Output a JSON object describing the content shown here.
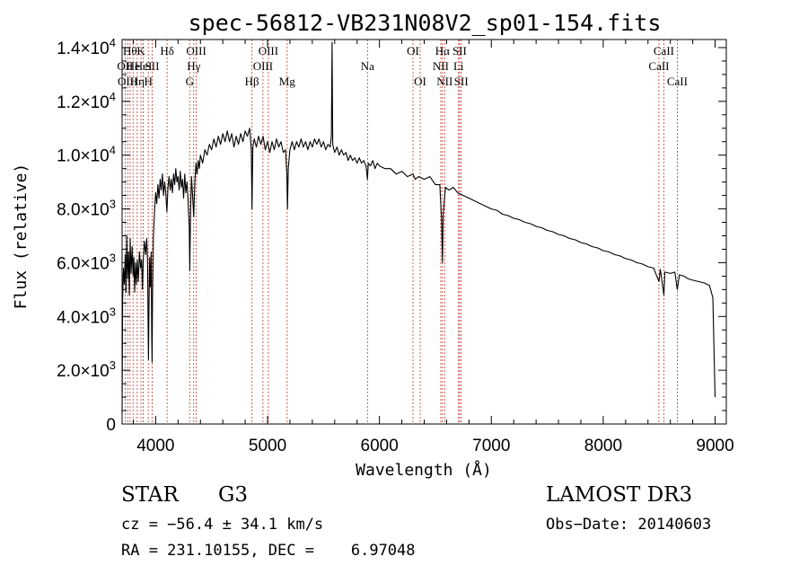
{
  "chart_data": {
    "type": "line",
    "title": "spec-56812-VB231N08V2_sp01-154.fits",
    "xlabel": "Wavelength (Å)",
    "ylabel": "Flux (relative)",
    "xlim": [
      3700,
      9100
    ],
    "ylim": [
      0,
      14300
    ],
    "x_ticks": [
      4000,
      5000,
      6000,
      7000,
      8000,
      9000
    ],
    "x_tick_labels": [
      "4000",
      "5000",
      "6000",
      "7000",
      "8000",
      "9000"
    ],
    "y_ticks": [
      {
        "value": 0,
        "mantissa": "0",
        "exp": ""
      },
      {
        "value": 2000,
        "mantissa": "2.0×10",
        "exp": "3"
      },
      {
        "value": 4000,
        "mantissa": "4.0×10",
        "exp": "3"
      },
      {
        "value": 6000,
        "mantissa": "6.0×10",
        "exp": "3"
      },
      {
        "value": 8000,
        "mantissa": "8.0×10",
        "exp": "3"
      },
      {
        "value": 10000,
        "mantissa": "1.0×10",
        "exp": "4"
      },
      {
        "value": 12000,
        "mantissa": "1.2×10",
        "exp": "4"
      },
      {
        "value": 14000,
        "mantissa": "1.4×10",
        "exp": "4"
      }
    ],
    "series": [
      {
        "name": "flux",
        "points": [
          [
            3700,
            400
          ],
          [
            3705,
            4600
          ],
          [
            3712,
            5800
          ],
          [
            3720,
            5200
          ],
          [
            3728,
            6300
          ],
          [
            3735,
            4900
          ],
          [
            3742,
            7000
          ],
          [
            3750,
            5400
          ],
          [
            3758,
            6400
          ],
          [
            3765,
            4800
          ],
          [
            3772,
            6900
          ],
          [
            3780,
            5600
          ],
          [
            3790,
            6600
          ],
          [
            3798,
            5500
          ],
          [
            3805,
            6200
          ],
          [
            3812,
            4900
          ],
          [
            3820,
            6000
          ],
          [
            3828,
            5200
          ],
          [
            3836,
            6100
          ],
          [
            3845,
            5300
          ],
          [
            3855,
            6400
          ],
          [
            3865,
            5800
          ],
          [
            3875,
            6100
          ],
          [
            3882,
            5000
          ],
          [
            3890,
            6200
          ],
          [
            3900,
            6800
          ],
          [
            3910,
            6300
          ],
          [
            3920,
            6900
          ],
          [
            3928,
            6000
          ],
          [
            3933,
            3600
          ],
          [
            3936,
            2400
          ],
          [
            3940,
            4200
          ],
          [
            3946,
            6200
          ],
          [
            3952,
            5100
          ],
          [
            3960,
            6400
          ],
          [
            3965,
            3300
          ],
          [
            3968,
            2300
          ],
          [
            3972,
            4800
          ],
          [
            3980,
            7000
          ],
          [
            3990,
            7900
          ],
          [
            4000,
            8600
          ],
          [
            4010,
            8200
          ],
          [
            4020,
            8900
          ],
          [
            4030,
            8400
          ],
          [
            4040,
            9100
          ],
          [
            4050,
            8700
          ],
          [
            4060,
            9300
          ],
          [
            4070,
            8500
          ],
          [
            4080,
            9000
          ],
          [
            4090,
            8600
          ],
          [
            4100,
            7900
          ],
          [
            4110,
            8800
          ],
          [
            4120,
            9200
          ],
          [
            4130,
            8700
          ],
          [
            4140,
            9100
          ],
          [
            4150,
            8600
          ],
          [
            4160,
            9300
          ],
          [
            4170,
            8900
          ],
          [
            4180,
            9500
          ],
          [
            4190,
            9000
          ],
          [
            4200,
            9200
          ],
          [
            4210,
            8700
          ],
          [
            4220,
            9400
          ],
          [
            4230,
            8800
          ],
          [
            4240,
            9100
          ],
          [
            4250,
            8400
          ],
          [
            4260,
            9300
          ],
          [
            4270,
            8600
          ],
          [
            4280,
            9000
          ],
          [
            4290,
            8300
          ],
          [
            4300,
            7300
          ],
          [
            4305,
            5700
          ],
          [
            4312,
            8000
          ],
          [
            4320,
            9200
          ],
          [
            4330,
            8500
          ],
          [
            4340,
            7700
          ],
          [
            4350,
            9000
          ],
          [
            4360,
            9700
          ],
          [
            4370,
            9300
          ],
          [
            4380,
            9800
          ],
          [
            4390,
            9500
          ],
          [
            4400,
            10000
          ],
          [
            4420,
            9700
          ],
          [
            4440,
            10200
          ],
          [
            4460,
            10000
          ],
          [
            4480,
            10400
          ],
          [
            4500,
            10200
          ],
          [
            4520,
            10600
          ],
          [
            4540,
            10300
          ],
          [
            4560,
            10700
          ],
          [
            4580,
            10400
          ],
          [
            4600,
            10800
          ],
          [
            4620,
            10500
          ],
          [
            4640,
            10900
          ],
          [
            4660,
            10500
          ],
          [
            4680,
            10800
          ],
          [
            4700,
            10300
          ],
          [
            4720,
            10700
          ],
          [
            4740,
            10400
          ],
          [
            4760,
            10800
          ],
          [
            4780,
            10500
          ],
          [
            4800,
            10900
          ],
          [
            4820,
            10700
          ],
          [
            4840,
            11000
          ],
          [
            4855,
            10200
          ],
          [
            4861,
            8000
          ],
          [
            4868,
            10300
          ],
          [
            4880,
            10600
          ],
          [
            4900,
            10300
          ],
          [
            4920,
            10700
          ],
          [
            4940,
            10400
          ],
          [
            4960,
            10700
          ],
          [
            4980,
            10200
          ],
          [
            5000,
            10500
          ],
          [
            5020,
            10100
          ],
          [
            5040,
            10500
          ],
          [
            5060,
            10200
          ],
          [
            5080,
            10600
          ],
          [
            5100,
            10300
          ],
          [
            5120,
            10500
          ],
          [
            5140,
            10100
          ],
          [
            5160,
            10200
          ],
          [
            5172,
            9300
          ],
          [
            5178,
            8000
          ],
          [
            5185,
            9500
          ],
          [
            5200,
            10200
          ],
          [
            5220,
            10500
          ],
          [
            5240,
            10200
          ],
          [
            5260,
            10500
          ],
          [
            5280,
            10300
          ],
          [
            5300,
            10600
          ],
          [
            5320,
            10300
          ],
          [
            5340,
            10500
          ],
          [
            5360,
            10200
          ],
          [
            5380,
            10500
          ],
          [
            5400,
            10300
          ],
          [
            5420,
            10600
          ],
          [
            5440,
            10400
          ],
          [
            5460,
            10600
          ],
          [
            5480,
            10300
          ],
          [
            5500,
            10500
          ],
          [
            5520,
            10200
          ],
          [
            5540,
            10400
          ],
          [
            5560,
            10300
          ],
          [
            5570,
            10700
          ],
          [
            5577,
            14200
          ],
          [
            5582,
            10400
          ],
          [
            5600,
            10100
          ],
          [
            5620,
            10300
          ],
          [
            5640,
            10000
          ],
          [
            5660,
            10200
          ],
          [
            5680,
            10000
          ],
          [
            5700,
            10100
          ],
          [
            5720,
            9800
          ],
          [
            5740,
            10000
          ],
          [
            5760,
            9800
          ],
          [
            5780,
            9900
          ],
          [
            5800,
            9700
          ],
          [
            5820,
            9900
          ],
          [
            5840,
            9700
          ],
          [
            5860,
            9800
          ],
          [
            5880,
            9600
          ],
          [
            5893,
            9100
          ],
          [
            5900,
            9700
          ],
          [
            5920,
            9600
          ],
          [
            5940,
            9800
          ],
          [
            5960,
            9500
          ],
          [
            5980,
            9700
          ],
          [
            6000,
            9600
          ],
          [
            6050,
            9500
          ],
          [
            6100,
            9500
          ],
          [
            6150,
            9300
          ],
          [
            6200,
            9400
          ],
          [
            6250,
            9200
          ],
          [
            6300,
            9300
          ],
          [
            6320,
            9100
          ],
          [
            6350,
            9200
          ],
          [
            6400,
            9100
          ],
          [
            6450,
            9200
          ],
          [
            6500,
            8900
          ],
          [
            6540,
            8900
          ],
          [
            6555,
            7600
          ],
          [
            6563,
            6000
          ],
          [
            6570,
            7800
          ],
          [
            6590,
            8800
          ],
          [
            6620,
            8700
          ],
          [
            6660,
            8800
          ],
          [
            6700,
            8600
          ],
          [
            6750,
            8500
          ],
          [
            6800,
            8400
          ],
          [
            6850,
            8300
          ],
          [
            6900,
            8200
          ],
          [
            6950,
            8100
          ],
          [
            7000,
            8000
          ],
          [
            7050,
            7950
          ],
          [
            7100,
            7800
          ],
          [
            7150,
            7750
          ],
          [
            7200,
            7650
          ],
          [
            7250,
            7600
          ],
          [
            7300,
            7500
          ],
          [
            7350,
            7450
          ],
          [
            7400,
            7350
          ],
          [
            7450,
            7300
          ],
          [
            7500,
            7200
          ],
          [
            7550,
            7150
          ],
          [
            7600,
            7050
          ],
          [
            7650,
            7000
          ],
          [
            7700,
            6900
          ],
          [
            7750,
            6850
          ],
          [
            7800,
            6750
          ],
          [
            7850,
            6700
          ],
          [
            7900,
            6600
          ],
          [
            7950,
            6550
          ],
          [
            8000,
            6450
          ],
          [
            8050,
            6400
          ],
          [
            8100,
            6300
          ],
          [
            8150,
            6250
          ],
          [
            8200,
            6150
          ],
          [
            8250,
            6100
          ],
          [
            8300,
            6000
          ],
          [
            8350,
            5950
          ],
          [
            8400,
            5850
          ],
          [
            8450,
            5800
          ],
          [
            8498,
            5300
          ],
          [
            8510,
            5750
          ],
          [
            8542,
            4800
          ],
          [
            8550,
            5650
          ],
          [
            8600,
            5600
          ],
          [
            8640,
            5650
          ],
          [
            8662,
            5000
          ],
          [
            8680,
            5550
          ],
          [
            8720,
            5500
          ],
          [
            8760,
            5400
          ],
          [
            8800,
            5350
          ],
          [
            8850,
            5300
          ],
          [
            8900,
            5250
          ],
          [
            8950,
            5150
          ],
          [
            8980,
            4700
          ],
          [
            9000,
            1000
          ]
        ]
      }
    ],
    "lines": [
      {
        "wl": 3727,
        "label": "OII",
        "row": 1
      },
      {
        "wl": 3750,
        "label": "OIII",
        "row": 2
      },
      {
        "wl": 3771,
        "label": "Hθ",
        "row": 0
      },
      {
        "wl": 3798,
        "label": "He",
        "row": 1
      },
      {
        "wl": 3835,
        "label": "Hη",
        "row": 2
      },
      {
        "wl": 3869,
        "label": "K",
        "row": 0
      },
      {
        "wl": 3889,
        "label": "HeI",
        "row": 1
      },
      {
        "wl": 3934,
        "label": "H",
        "row": 2
      },
      {
        "wl": 3969,
        "label": "SII",
        "row": 1
      },
      {
        "wl": 4102,
        "label": "Hδ",
        "row": 0
      },
      {
        "wl": 4304,
        "label": "G",
        "row": 2
      },
      {
        "wl": 4340,
        "label": "Hγ",
        "row": 1
      },
      {
        "wl": 4363,
        "label": "OIII",
        "row": 0
      },
      {
        "wl": 4861,
        "label": "Hβ",
        "row": 2
      },
      {
        "wl": 4959,
        "label": "OIII",
        "row": 1
      },
      {
        "wl": 5007,
        "label": "OIII",
        "row": 0
      },
      {
        "wl": 5175,
        "label": "Mg",
        "row": 2
      },
      {
        "wl": 5893,
        "label": "Na",
        "row": 1
      },
      {
        "wl": 6300,
        "label": "OI",
        "row": 0
      },
      {
        "wl": 6364,
        "label": "OI",
        "row": 2
      },
      {
        "wl": 6548,
        "label": "NII",
        "row": 1
      },
      {
        "wl": 6563,
        "label": "Hα",
        "row": 0
      },
      {
        "wl": 6583,
        "label": "NII",
        "row": 2
      },
      {
        "wl": 6707,
        "label": "Li",
        "row": 1
      },
      {
        "wl": 6716,
        "label": "SII",
        "row": 0
      },
      {
        "wl": 6731,
        "label": "SII",
        "row": 2
      },
      {
        "wl": 8498,
        "label": "CaII",
        "row": 1
      },
      {
        "wl": 8542,
        "label": "CaII",
        "row": 0
      },
      {
        "wl": 8662,
        "label": "CaII",
        "row": 2
      }
    ]
  },
  "info": {
    "object_class": "STAR",
    "subclass": "G3",
    "survey": "LAMOST DR3",
    "redshift_text": "cz = −56.4 ± 34.1 km/s",
    "obs_date_text": "Obs−Date: 20140603",
    "coords_text": "RA = 231.10155, DEC =    6.97048"
  },
  "colors": {
    "spectrum": "#000000",
    "line_markers": "#c0392b",
    "axis": "#000000"
  }
}
